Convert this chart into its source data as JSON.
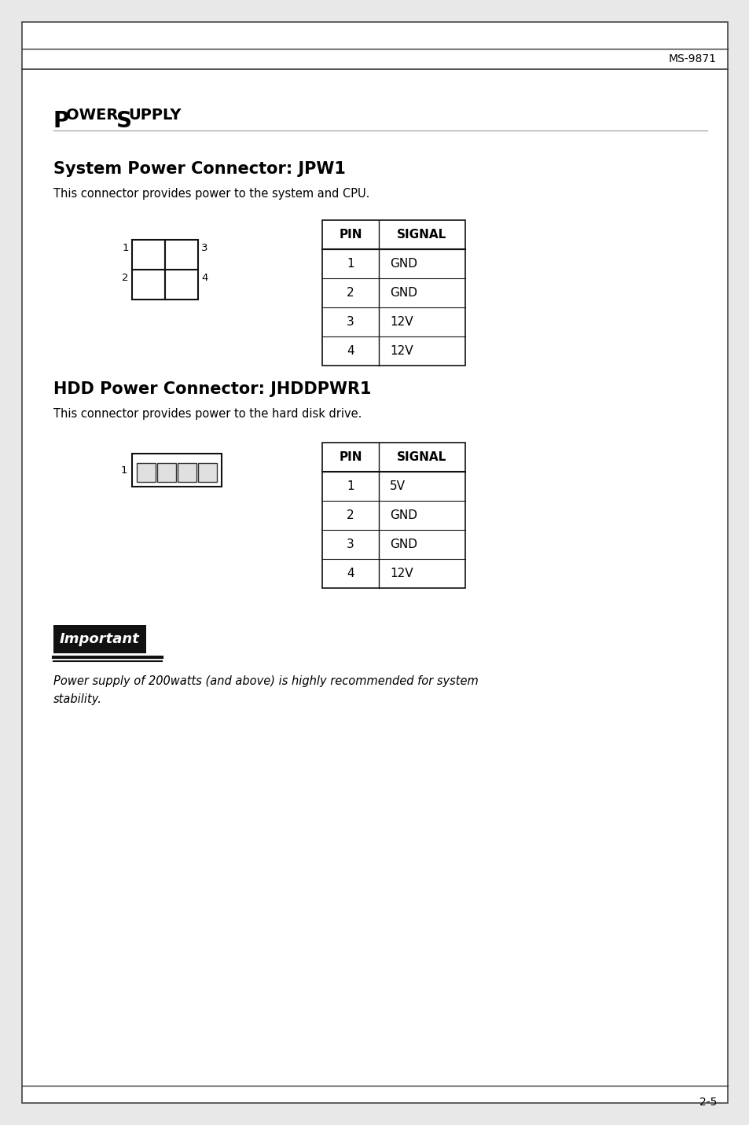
{
  "page_bg": "#e8e8e8",
  "content_bg": "#ffffff",
  "header_text": "MS-9871",
  "footer_text": "2-5",
  "jpw1_title": "System Power Connector: JPW1",
  "jpw1_desc": "This connector provides power to the system and CPU.",
  "jpw1_pins": [
    "1",
    "2",
    "3",
    "4"
  ],
  "jpw1_signals": [
    "GND",
    "GND",
    "12V",
    "12V"
  ],
  "jhddpwr1_title": "HDD Power Connector: JHDDPWR1",
  "jhddpwr1_desc": "This connector provides power to the hard disk drive.",
  "jhddpwr1_pins": [
    "1",
    "2",
    "3",
    "4"
  ],
  "jhddpwr1_signals": [
    "5V",
    "GND",
    "GND",
    "12V"
  ],
  "important_note": "Power supply of 200watts (and above) is highly recommended for system\nstability.",
  "border_color": "#000000",
  "text_color": "#000000",
  "gray_line": "#888888"
}
